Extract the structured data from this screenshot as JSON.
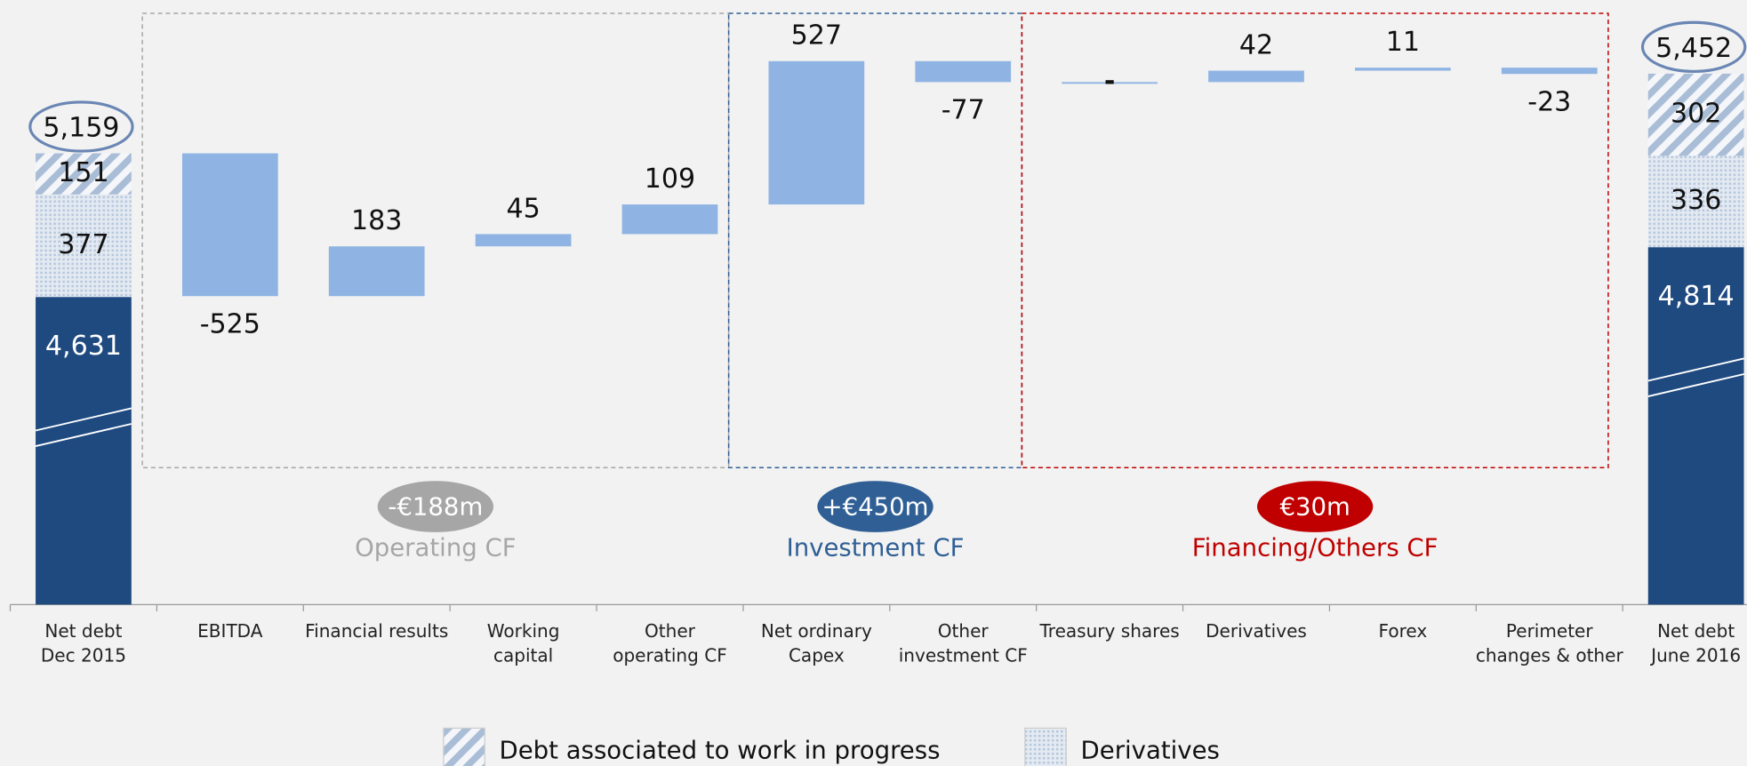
{
  "chart_data": {
    "type": "waterfall",
    "categories": [
      [
        "Net debt",
        "Dec 2015"
      ],
      [
        "EBITDA"
      ],
      [
        "Financial results"
      ],
      [
        "Working",
        "capital"
      ],
      [
        "Other",
        "operating CF"
      ],
      [
        "Net ordinary",
        "Capex"
      ],
      [
        "Other",
        "investment CF"
      ],
      [
        "Treasury shares"
      ],
      [
        "Derivatives"
      ],
      [
        "Forex"
      ],
      [
        "Perimeter",
        "changes & other"
      ],
      [
        "Net debt",
        "June 2016"
      ]
    ],
    "ylim": [
      3500,
      5600
    ],
    "y_break": true,
    "series": [
      {
        "color": "#1f4a80",
        "values": [
          4631,
          null,
          null,
          null,
          null,
          null,
          null,
          null,
          null,
          null,
          null,
          4814
        ],
        "value_labels": [
          "4,631",
          null,
          null,
          null,
          null,
          null,
          null,
          null,
          null,
          null,
          null,
          "4,814"
        ]
      },
      {
        "name": "Derivatives",
        "pattern": "dots",
        "color": "#b4c6dc",
        "values": [
          377,
          null,
          null,
          null,
          null,
          null,
          null,
          null,
          null,
          null,
          null,
          336
        ]
      },
      {
        "name": "Debt associated to work in progress",
        "pattern": "hatch",
        "color": "#a9bdd6",
        "values": [
          151,
          null,
          null,
          null,
          null,
          null,
          null,
          null,
          null,
          null,
          null,
          302
        ]
      }
    ],
    "steps": {
      "color": "#8fb4e3",
      "values": [
        null,
        -525,
        183,
        45,
        109,
        527,
        -77,
        0,
        42,
        11,
        -23,
        null
      ],
      "value_labels": [
        null,
        null,
        null,
        null,
        null,
        null,
        null,
        "-",
        null,
        null,
        null,
        null
      ]
    },
    "totals": {
      "outline": "#6a86b4",
      "values": [
        5159,
        null,
        null,
        null,
        null,
        null,
        null,
        null,
        null,
        null,
        null,
        5452
      ],
      "value_labels": [
        "5,159",
        null,
        null,
        null,
        null,
        null,
        null,
        null,
        null,
        null,
        null,
        "5,452"
      ]
    },
    "groups": [
      {
        "badge": "-€188m",
        "label": "Operating CF",
        "color": "#a6a6a6"
      },
      {
        "badge": "+€450m",
        "label": "Investment CF",
        "color": "#2f5f95"
      },
      {
        "badge": "€30m",
        "label": "Financing/Others CF",
        "color": "#c00000"
      }
    ]
  }
}
